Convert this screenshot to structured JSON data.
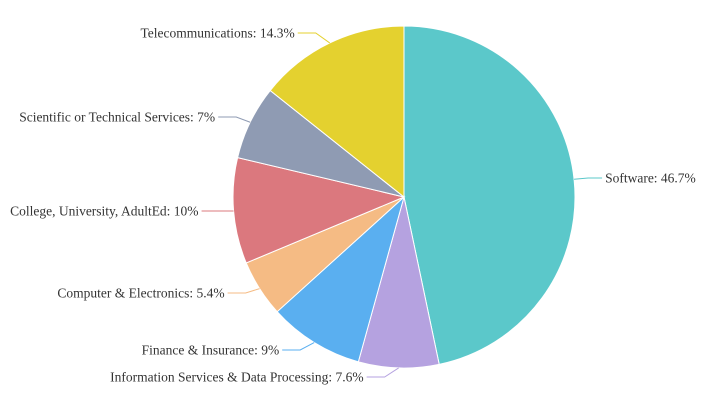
{
  "chart_data": {
    "type": "pie",
    "title": "",
    "start_angle_deg": 0,
    "direction": "clockwise",
    "slices": [
      {
        "label": "Software",
        "value": 46.7,
        "color": "#5bc8ca"
      },
      {
        "label": "Information Services & Data Processing",
        "value": 7.6,
        "color": "#b5a2e0"
      },
      {
        "label": "Finance & Insurance",
        "value": 9,
        "color": "#5aaff0"
      },
      {
        "label": "Computer & Electronics",
        "value": 5.4,
        "color": "#f5bb84"
      },
      {
        "label": "College, University, AdultEd",
        "value": 10,
        "color": "#db787e"
      },
      {
        "label": "Scientific or Technical Services",
        "value": 7,
        "color": "#8f9bb3"
      },
      {
        "label": "Telecommunications",
        "value": 14.3,
        "color": "#e4d12f"
      }
    ],
    "label_format": "{label}: {value}%"
  }
}
